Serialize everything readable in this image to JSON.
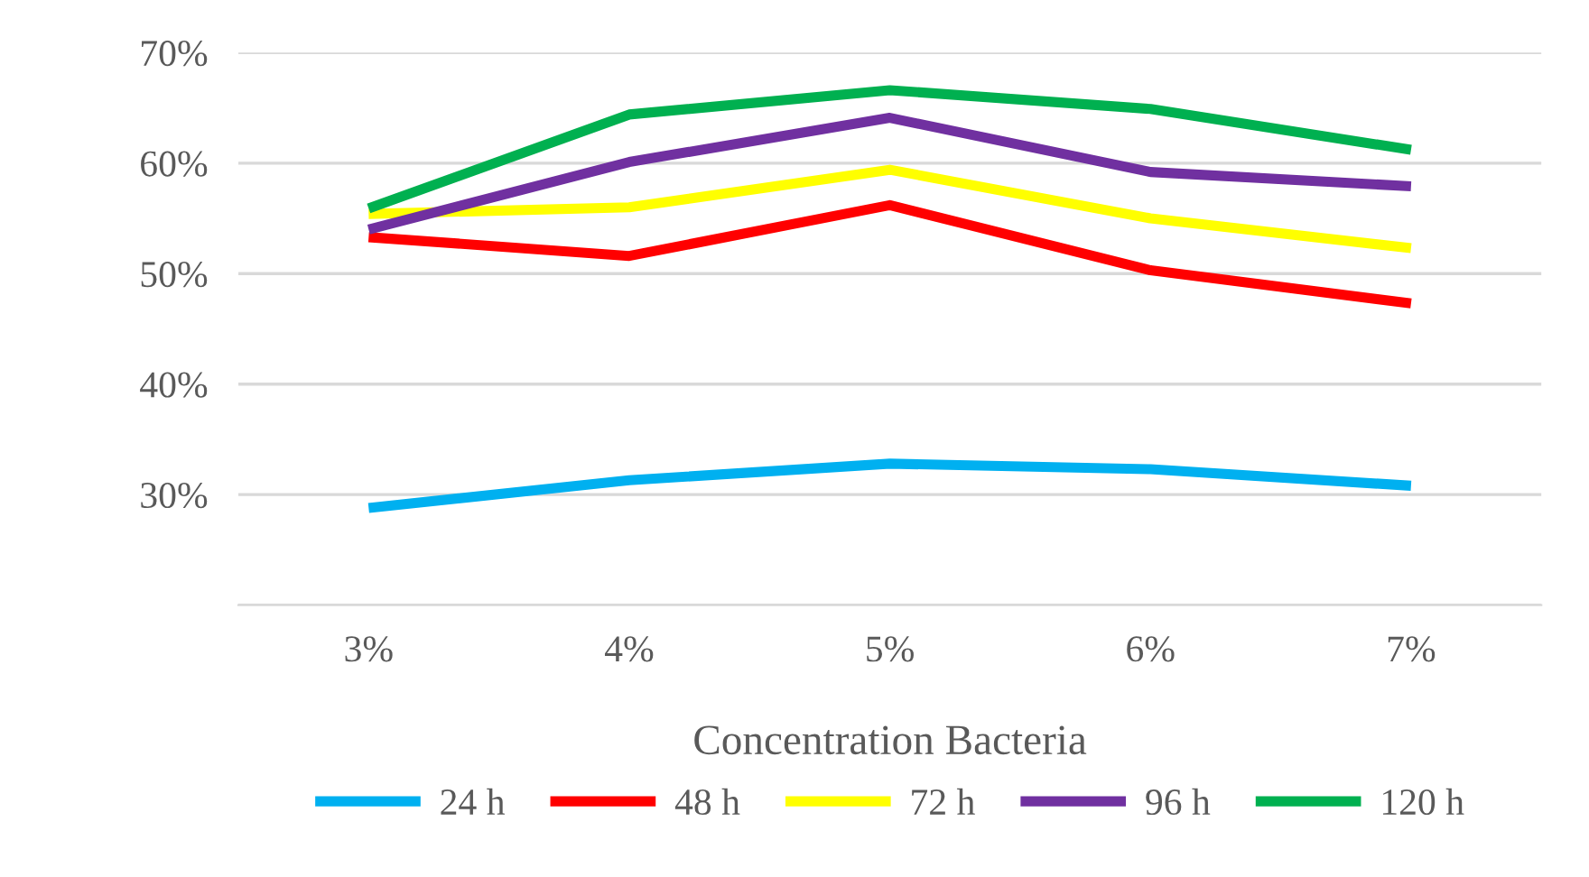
{
  "chart_data": {
    "type": "line",
    "xlabel": "Concentration Bacteria",
    "categories": [
      "3%",
      "4%",
      "5%",
      "6%",
      "7%"
    ],
    "series": [
      {
        "name": "24 h",
        "color": "#00b0f0",
        "values": [
          28.8,
          31.3,
          32.8,
          32.3,
          30.8
        ]
      },
      {
        "name": "48 h",
        "color": "#ff0000",
        "values": [
          53.3,
          51.6,
          56.2,
          50.3,
          47.3
        ]
      },
      {
        "name": "72 h",
        "color": "#ffff00",
        "values": [
          55.4,
          56.0,
          59.4,
          55.0,
          52.3
        ]
      },
      {
        "name": "96 h",
        "color": "#7030a0",
        "values": [
          54.0,
          60.1,
          64.1,
          59.2,
          57.9
        ]
      },
      {
        "name": "120 h",
        "color": "#00b050",
        "values": [
          55.9,
          64.4,
          66.6,
          64.9,
          61.2
        ]
      }
    ],
    "ylim": [
      20,
      70
    ],
    "yticks": [
      {
        "value": 20,
        "label": null
      },
      {
        "value": 30,
        "label": "30%"
      },
      {
        "value": 40,
        "label": "40%"
      },
      {
        "value": 50,
        "label": "50%"
      },
      {
        "value": 60,
        "label": "60%"
      },
      {
        "value": 70,
        "label": "70%"
      }
    ],
    "grid": "y",
    "legend": "bottom",
    "marker": "none",
    "line_style": "solid"
  }
}
